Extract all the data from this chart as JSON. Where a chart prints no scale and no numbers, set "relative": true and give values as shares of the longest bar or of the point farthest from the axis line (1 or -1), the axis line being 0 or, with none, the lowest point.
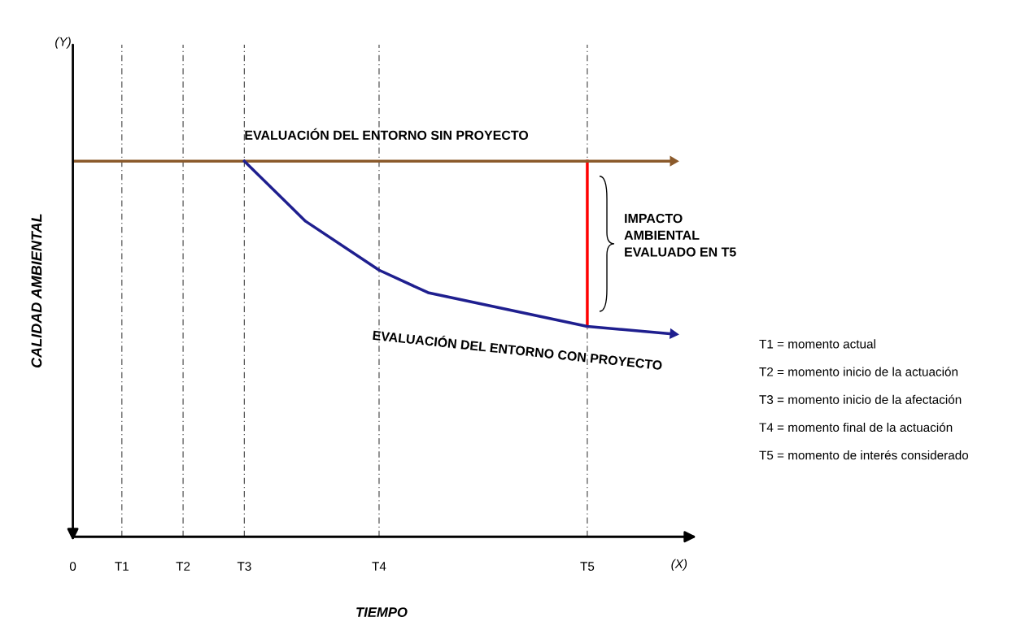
{
  "chart_data": {
    "type": "line",
    "relative": true,
    "xlabel": "TIEMPO",
    "ylabel": "CALIDAD AMBIENTAL",
    "categories": [
      "0",
      null,
      null,
      null,
      "T1",
      null,
      null,
      null,
      null,
      "T2",
      null,
      null,
      null,
      null,
      "T3",
      null,
      null,
      null,
      null,
      null,
      null,
      null,
      null,
      null,
      null,
      "T4",
      null,
      null,
      null,
      null,
      null,
      null,
      null,
      null,
      null,
      null,
      null,
      null,
      null,
      null,
      null,
      null,
      "T5",
      null,
      null,
      null,
      null,
      null,
      null,
      null
    ],
    "series": [
      {
        "name": "EVALUACIÓN DEL ENTORNO SIN PROYECTO",
        "color": "#8b5a2b",
        "values": [
          1,
          null,
          null,
          null,
          null,
          null,
          null,
          null,
          null,
          null,
          null,
          null,
          null,
          null,
          1,
          null,
          null,
          null,
          null,
          null,
          null,
          null,
          null,
          null,
          null,
          null,
          null,
          null,
          null,
          null,
          null,
          null,
          null,
          null,
          null,
          null,
          null,
          null,
          null,
          null,
          null,
          null,
          1,
          null,
          null,
          null,
          null,
          null,
          null,
          1
        ]
      },
      {
        "name": "EVALUACIÓN DEL ENTORNO CON PROYECTO",
        "color": "#1f1f8f",
        "values": [
          null,
          null,
          null,
          null,
          null,
          null,
          null,
          null,
          null,
          null,
          null,
          null,
          null,
          null,
          1,
          null,
          null,
          null,
          null,
          0.84,
          null,
          null,
          null,
          null,
          null,
          0.71,
          null,
          null,
          null,
          0.65,
          null,
          null,
          null,
          null,
          null,
          null,
          null,
          null,
          null,
          null,
          null,
          null,
          0.56,
          null,
          null,
          null,
          null,
          null,
          null,
          0.54
        ]
      }
    ],
    "annotations": [
      "IMPACTO\nAMBIENTAL\nEVALUADO EN T5",
      "(Y)",
      "(X)",
      "T1 = momento actual",
      "T2 = momento inicio de la actuación",
      "T3 = momento inicio de la afectación",
      "T4 = momento final de la actuación",
      "T5 = momento de interés considerado"
    ],
    "legend": false,
    "grid": "x",
    "marker": "none",
    "line_style": "solid"
  }
}
